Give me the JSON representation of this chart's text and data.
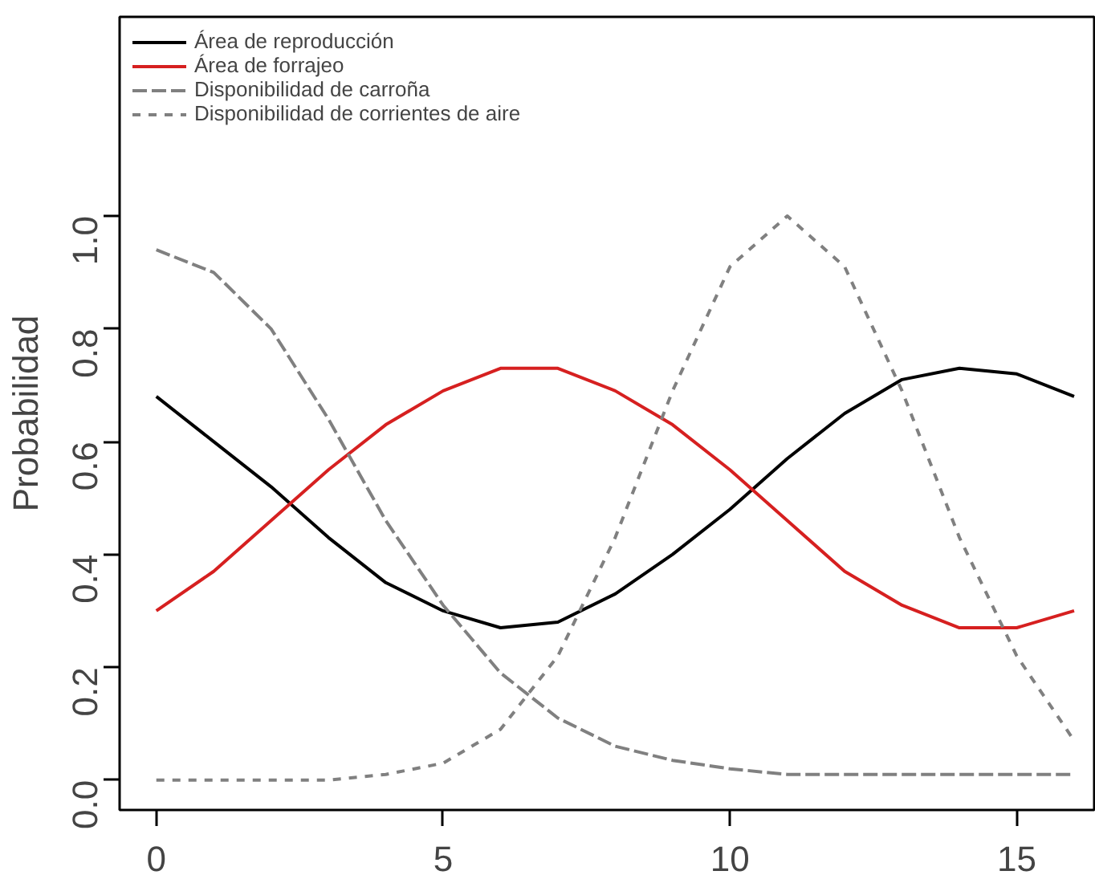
{
  "chart_data": {
    "type": "line",
    "ylabel": "Probabilidad",
    "x": [
      0,
      1,
      2,
      3,
      4,
      5,
      6,
      7,
      8,
      9,
      10,
      11,
      12,
      13,
      14,
      15,
      16
    ],
    "series": [
      {
        "name": "Área de reproducción",
        "color": "#000000",
        "line_style": "solid",
        "values": [
          0.68,
          0.6,
          0.52,
          0.43,
          0.35,
          0.3,
          0.27,
          0.28,
          0.33,
          0.4,
          0.48,
          0.57,
          0.65,
          0.71,
          0.73,
          0.72,
          0.68
        ]
      },
      {
        "name": "Área de forrajeo",
        "color": "#d62020",
        "line_style": "solid",
        "values": [
          0.3,
          0.37,
          0.46,
          0.55,
          0.63,
          0.69,
          0.73,
          0.73,
          0.69,
          0.63,
          0.55,
          0.46,
          0.37,
          0.31,
          0.27,
          0.27,
          0.3
        ]
      },
      {
        "name": "Disponibilidad de carroña",
        "color": "#808080",
        "line_style": "dashed",
        "values": [
          0.94,
          0.9,
          0.8,
          0.64,
          0.46,
          0.31,
          0.19,
          0.11,
          0.06,
          0.035,
          0.02,
          0.01,
          0.01,
          0.01,
          0.01,
          0.01,
          0.01
        ]
      },
      {
        "name": "Disponibilidad de corrientes de aire",
        "color": "#808080",
        "line_style": "dotted",
        "values": [
          0.0,
          0.0,
          0.0,
          0.0,
          0.01,
          0.03,
          0.09,
          0.22,
          0.43,
          0.69,
          0.91,
          1.0,
          0.91,
          0.69,
          0.43,
          0.22,
          0.07
        ]
      }
    ],
    "xlim": [
      -0.64,
      16.35
    ],
    "ylim": [
      -0.053,
      1.353
    ],
    "xticks": [
      0,
      5,
      10,
      15
    ],
    "yticks": [
      {
        "value": 0,
        "label": "0.0"
      },
      {
        "value": 0.2,
        "label": "0.2"
      },
      {
        "value": 0.4,
        "label": "0.4"
      },
      {
        "value": 0.6,
        "label": "0.6"
      },
      {
        "value": 0.8,
        "label": "0.8"
      },
      {
        "value": 1.0,
        "label": "1.0"
      }
    ],
    "grid": false,
    "legend": "top left",
    "marker": "none"
  }
}
